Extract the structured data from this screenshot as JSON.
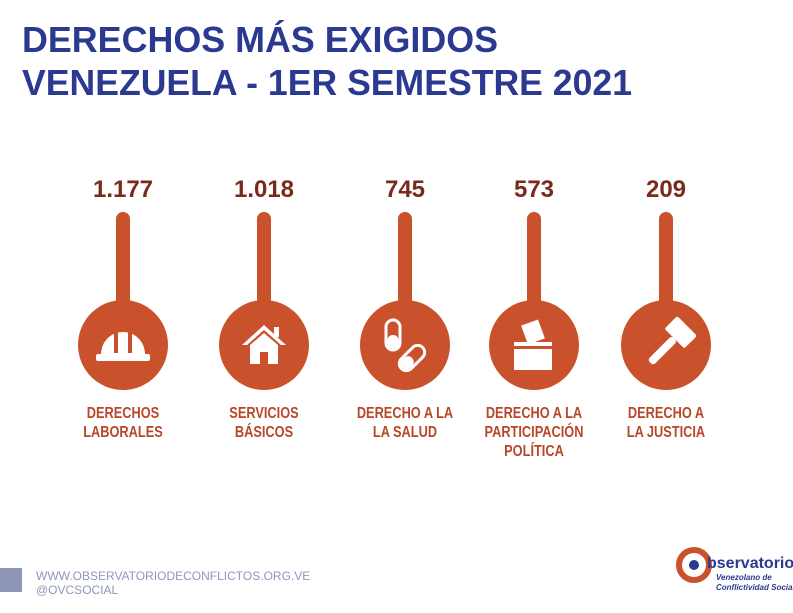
{
  "title": {
    "lines": [
      "DERECHOS MÁS EXIGIDOS",
      "VENEZUELA - 1ER SEMESTRE 2021"
    ]
  },
  "items": [
    {
      "value": "1.177",
      "label": [
        "DERECHOS",
        "LABORALES"
      ]
    },
    {
      "value": "1.018",
      "label": [
        "SERVICIOS",
        "BÁSICOS"
      ]
    },
    {
      "value": "745",
      "label": [
        "DERECHO A LA",
        "LA SALUD"
      ]
    },
    {
      "value": "573",
      "label": [
        "DERECHO A LA",
        "PARTICIPACIÓN",
        "POLÍTICA"
      ]
    },
    {
      "value": "209",
      "label": [
        "DERECHO A",
        "LA JUSTICIA"
      ]
    }
  ],
  "footer": {
    "website": "WWW.OBSERVATORIODECONFLICTOS.ORG.VE",
    "handle": "@OVCSOCIAL"
  },
  "logo": {
    "name": "bservatorio",
    "line1": "Venezolano de",
    "line2": "Conflictividad Social"
  }
}
